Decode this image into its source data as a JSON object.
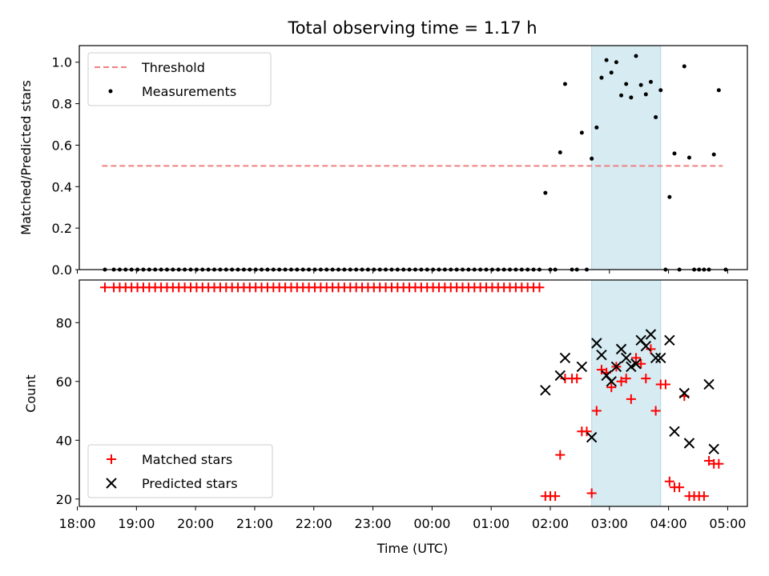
{
  "title": "Total observing time = 1.17 h",
  "chart_data": [
    {
      "type": "scatter",
      "panel": "top",
      "ylabel": "Matched/Predicted stars",
      "ylim": [
        0,
        1.08
      ],
      "yticks": [
        0.0,
        0.2,
        0.4,
        0.6,
        0.8,
        1.0
      ],
      "ytick_labels": [
        "0.0",
        "0.2",
        "0.4",
        "0.6",
        "0.8",
        "1.0"
      ],
      "legend_position": "upper-left",
      "threshold": {
        "name": "Threshold",
        "value": 0.5,
        "x_start": "18:25",
        "x_end": "04:55",
        "color": "#f08080"
      },
      "series": [
        {
          "name": "Measurements",
          "color": "#000000",
          "points": [
            [
              "18:28",
              0
            ],
            [
              "18:37",
              0
            ],
            [
              "18:43",
              0
            ],
            [
              "18:49",
              0
            ],
            [
              "18:55",
              0
            ],
            [
              "19:01",
              0
            ],
            [
              "19:07",
              0
            ],
            [
              "19:13",
              0
            ],
            [
              "19:19",
              0
            ],
            [
              "19:25",
              0
            ],
            [
              "19:31",
              0
            ],
            [
              "19:37",
              0
            ],
            [
              "19:43",
              0
            ],
            [
              "19:49",
              0
            ],
            [
              "19:55",
              0
            ],
            [
              "20:01",
              0
            ],
            [
              "20:07",
              0
            ],
            [
              "20:13",
              0
            ],
            [
              "20:19",
              0
            ],
            [
              "20:25",
              0
            ],
            [
              "20:31",
              0
            ],
            [
              "20:37",
              0
            ],
            [
              "20:43",
              0
            ],
            [
              "20:49",
              0
            ],
            [
              "20:55",
              0
            ],
            [
              "21:01",
              0
            ],
            [
              "21:07",
              0
            ],
            [
              "21:13",
              0
            ],
            [
              "21:19",
              0
            ],
            [
              "21:25",
              0
            ],
            [
              "21:31",
              0
            ],
            [
              "21:37",
              0
            ],
            [
              "21:43",
              0
            ],
            [
              "21:49",
              0
            ],
            [
              "21:55",
              0
            ],
            [
              "22:01",
              0
            ],
            [
              "22:07",
              0
            ],
            [
              "22:13",
              0
            ],
            [
              "22:19",
              0
            ],
            [
              "22:25",
              0
            ],
            [
              "22:31",
              0
            ],
            [
              "22:37",
              0
            ],
            [
              "22:43",
              0
            ],
            [
              "22:49",
              0
            ],
            [
              "22:55",
              0
            ],
            [
              "23:01",
              0
            ],
            [
              "23:07",
              0
            ],
            [
              "23:13",
              0
            ],
            [
              "23:19",
              0
            ],
            [
              "23:25",
              0
            ],
            [
              "23:31",
              0
            ],
            [
              "23:37",
              0
            ],
            [
              "23:43",
              0
            ],
            [
              "23:49",
              0
            ],
            [
              "23:55",
              0
            ],
            [
              "00:01",
              0
            ],
            [
              "00:07",
              0
            ],
            [
              "00:13",
              0
            ],
            [
              "00:19",
              0
            ],
            [
              "00:25",
              0
            ],
            [
              "00:31",
              0
            ],
            [
              "00:37",
              0
            ],
            [
              "00:43",
              0
            ],
            [
              "00:49",
              0
            ],
            [
              "00:55",
              0
            ],
            [
              "01:01",
              0
            ],
            [
              "01:07",
              0
            ],
            [
              "01:13",
              0
            ],
            [
              "01:19",
              0
            ],
            [
              "01:25",
              0
            ],
            [
              "01:31",
              0
            ],
            [
              "01:37",
              0
            ],
            [
              "01:43",
              0
            ],
            [
              "01:49",
              0
            ],
            [
              "01:55",
              0.37
            ],
            [
              "02:00",
              0
            ],
            [
              "02:05",
              0
            ],
            [
              "02:10",
              0.565
            ],
            [
              "02:15",
              0.895
            ],
            [
              "02:22",
              0
            ],
            [
              "02:27",
              0
            ],
            [
              "02:32",
              0.66
            ],
            [
              "02:37",
              0
            ],
            [
              "02:42",
              0.535
            ],
            [
              "02:47",
              0.685
            ],
            [
              "02:52",
              0.925
            ],
            [
              "02:57",
              1.01
            ],
            [
              "03:02",
              0.95
            ],
            [
              "03:07",
              1.0
            ],
            [
              "03:12",
              0.84
            ],
            [
              "03:17",
              0.895
            ],
            [
              "03:22",
              0.83
            ],
            [
              "03:27",
              1.03
            ],
            [
              "03:32",
              0.89
            ],
            [
              "03:37",
              0.845
            ],
            [
              "03:42",
              0.905
            ],
            [
              "03:47",
              0.735
            ],
            [
              "03:52",
              0.865
            ],
            [
              "03:57",
              0
            ],
            [
              "04:01",
              0.35
            ],
            [
              "04:06",
              0.56
            ],
            [
              "04:11",
              0
            ],
            [
              "04:16",
              0.98
            ],
            [
              "04:21",
              0.54
            ],
            [
              "04:26",
              0
            ],
            [
              "04:31",
              0
            ],
            [
              "04:36",
              0
            ],
            [
              "04:41",
              0
            ],
            [
              "04:46",
              0.555
            ],
            [
              "04:51",
              0.865
            ],
            [
              "04:58",
              0
            ]
          ]
        }
      ]
    },
    {
      "type": "scatter",
      "panel": "bottom",
      "xlabel": "Time (UTC)",
      "ylabel": "Count",
      "ylim": [
        17.5,
        94.5
      ],
      "yticks": [
        20,
        40,
        60,
        80
      ],
      "ytick_labels": [
        "20",
        "40",
        "60",
        "80"
      ],
      "legend_position": "lower-left",
      "series": [
        {
          "name": "Matched stars",
          "marker": "plus",
          "color": "#ff0000",
          "points": [
            [
              "18:28",
              92
            ],
            [
              "18:37",
              92
            ],
            [
              "18:43",
              92
            ],
            [
              "18:49",
              92
            ],
            [
              "18:55",
              92
            ],
            [
              "19:01",
              92
            ],
            [
              "19:07",
              92
            ],
            [
              "19:13",
              92
            ],
            [
              "19:19",
              92
            ],
            [
              "19:25",
              92
            ],
            [
              "19:31",
              92
            ],
            [
              "19:37",
              92
            ],
            [
              "19:43",
              92
            ],
            [
              "19:49",
              92
            ],
            [
              "19:55",
              92
            ],
            [
              "20:01",
              92
            ],
            [
              "20:07",
              92
            ],
            [
              "20:13",
              92
            ],
            [
              "20:19",
              92
            ],
            [
              "20:25",
              92
            ],
            [
              "20:31",
              92
            ],
            [
              "20:37",
              92
            ],
            [
              "20:43",
              92
            ],
            [
              "20:49",
              92
            ],
            [
              "20:55",
              92
            ],
            [
              "21:01",
              92
            ],
            [
              "21:07",
              92
            ],
            [
              "21:13",
              92
            ],
            [
              "21:19",
              92
            ],
            [
              "21:25",
              92
            ],
            [
              "21:31",
              92
            ],
            [
              "21:37",
              92
            ],
            [
              "21:43",
              92
            ],
            [
              "21:49",
              92
            ],
            [
              "21:55",
              92
            ],
            [
              "22:01",
              92
            ],
            [
              "22:07",
              92
            ],
            [
              "22:13",
              92
            ],
            [
              "22:19",
              92
            ],
            [
              "22:25",
              92
            ],
            [
              "22:31",
              92
            ],
            [
              "22:37",
              92
            ],
            [
              "22:43",
              92
            ],
            [
              "22:49",
              92
            ],
            [
              "22:55",
              92
            ],
            [
              "23:01",
              92
            ],
            [
              "23:07",
              92
            ],
            [
              "23:13",
              92
            ],
            [
              "23:19",
              92
            ],
            [
              "23:25",
              92
            ],
            [
              "23:31",
              92
            ],
            [
              "23:37",
              92
            ],
            [
              "23:43",
              92
            ],
            [
              "23:49",
              92
            ],
            [
              "23:55",
              92
            ],
            [
              "00:01",
              92
            ],
            [
              "00:07",
              92
            ],
            [
              "00:13",
              92
            ],
            [
              "00:19",
              92
            ],
            [
              "00:25",
              92
            ],
            [
              "00:31",
              92
            ],
            [
              "00:37",
              92
            ],
            [
              "00:43",
              92
            ],
            [
              "00:49",
              92
            ],
            [
              "00:55",
              92
            ],
            [
              "01:01",
              92
            ],
            [
              "01:07",
              92
            ],
            [
              "01:13",
              92
            ],
            [
              "01:19",
              92
            ],
            [
              "01:25",
              92
            ],
            [
              "01:31",
              92
            ],
            [
              "01:37",
              92
            ],
            [
              "01:43",
              92
            ],
            [
              "01:49",
              92
            ],
            [
              "01:55",
              21
            ],
            [
              "02:00",
              21
            ],
            [
              "02:05",
              21
            ],
            [
              "02:10",
              35
            ],
            [
              "02:15",
              61
            ],
            [
              "02:22",
              61
            ],
            [
              "02:27",
              61
            ],
            [
              "02:32",
              43
            ],
            [
              "02:37",
              43
            ],
            [
              "02:42",
              22
            ],
            [
              "02:47",
              50
            ],
            [
              "02:52",
              64
            ],
            [
              "02:57",
              63
            ],
            [
              "03:02",
              58
            ],
            [
              "03:07",
              65
            ],
            [
              "03:12",
              60
            ],
            [
              "03:17",
              61
            ],
            [
              "03:22",
              54
            ],
            [
              "03:27",
              68
            ],
            [
              "03:32",
              66
            ],
            [
              "03:37",
              61
            ],
            [
              "03:42",
              71
            ],
            [
              "03:47",
              50
            ],
            [
              "03:52",
              59
            ],
            [
              "03:57",
              59
            ],
            [
              "04:01",
              26
            ],
            [
              "04:06",
              24
            ],
            [
              "04:11",
              24
            ],
            [
              "04:16",
              55
            ],
            [
              "04:21",
              21
            ],
            [
              "04:26",
              21
            ],
            [
              "04:31",
              21
            ],
            [
              "04:36",
              21
            ],
            [
              "04:41",
              33
            ],
            [
              "04:46",
              32
            ],
            [
              "04:51",
              32
            ]
          ]
        },
        {
          "name": "Predicted stars",
          "marker": "x",
          "color": "#000000",
          "points": [
            [
              "01:55",
              57
            ],
            [
              "02:10",
              62
            ],
            [
              "02:15",
              68
            ],
            [
              "02:32",
              65
            ],
            [
              "02:42",
              41
            ],
            [
              "02:47",
              73
            ],
            [
              "02:52",
              69
            ],
            [
              "02:57",
              62
            ],
            [
              "03:02",
              60
            ],
            [
              "03:07",
              65
            ],
            [
              "03:12",
              71
            ],
            [
              "03:17",
              68
            ],
            [
              "03:22",
              65
            ],
            [
              "03:27",
              66
            ],
            [
              "03:32",
              74
            ],
            [
              "03:37",
              72
            ],
            [
              "03:42",
              76
            ],
            [
              "03:47",
              68
            ],
            [
              "03:52",
              68
            ],
            [
              "04:01",
              74
            ],
            [
              "04:06",
              43
            ],
            [
              "04:16",
              56
            ],
            [
              "04:21",
              39
            ],
            [
              "04:41",
              59
            ],
            [
              "04:46",
              37
            ]
          ]
        }
      ]
    }
  ],
  "x_axis": {
    "range": [
      "18:02",
      "05:20"
    ],
    "ticks": [
      "18:00",
      "19:00",
      "20:00",
      "21:00",
      "22:00",
      "23:00",
      "00:00",
      "01:00",
      "02:00",
      "03:00",
      "04:00",
      "05:00"
    ]
  },
  "highlight_window": {
    "start": "02:42",
    "end": "03:52",
    "color": "#add8e6"
  }
}
